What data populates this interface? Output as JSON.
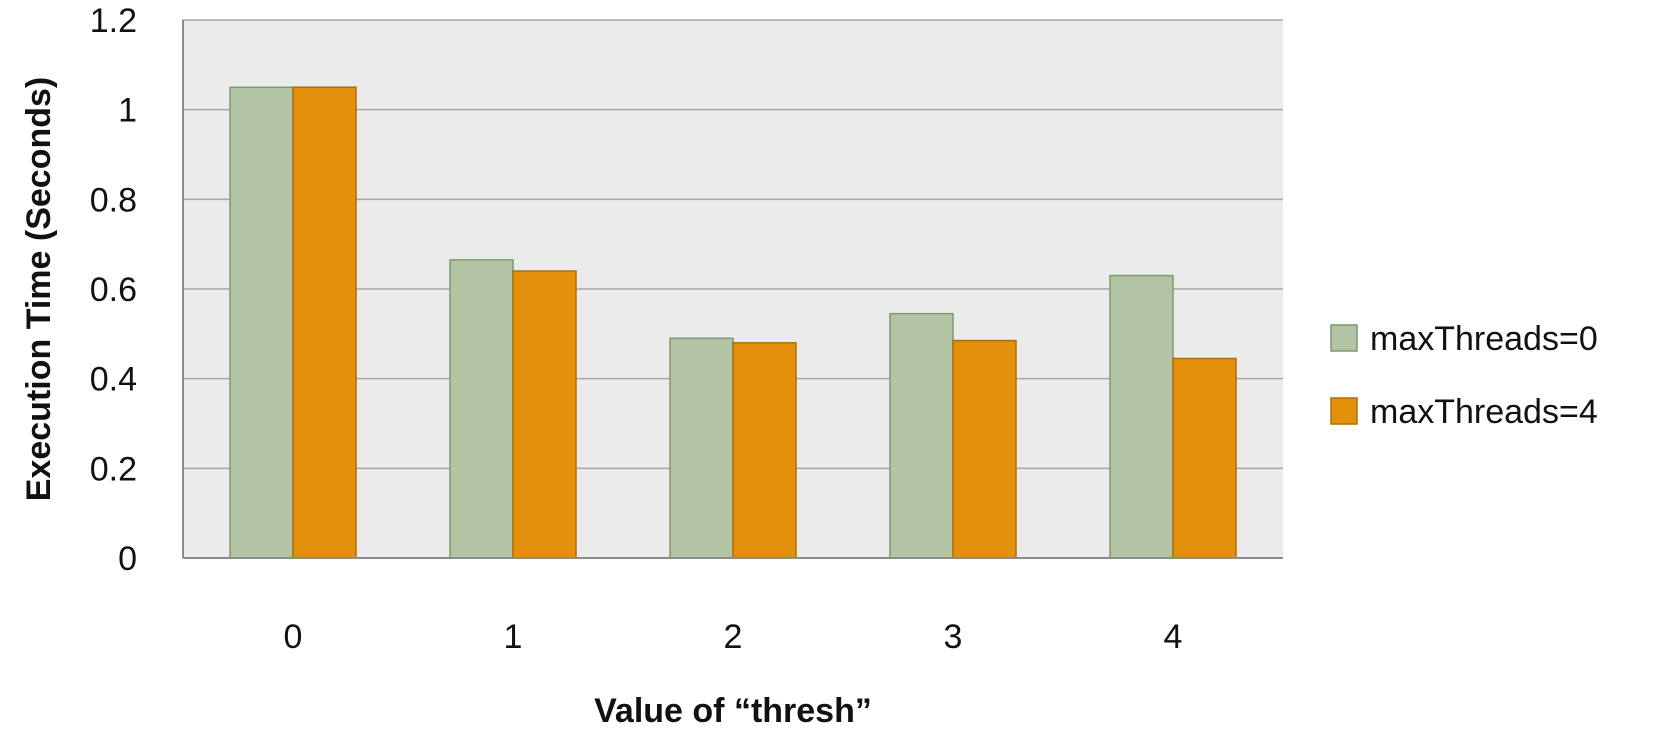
{
  "chart_data": {
    "type": "bar",
    "title": "",
    "xlabel": "Value of “thresh”",
    "ylabel": "Execution Time (Seconds)",
    "categories": [
      "0",
      "1",
      "2",
      "3",
      "4"
    ],
    "series": [
      {
        "name": "maxThreads=0",
        "color": "#b3c4a4",
        "stroke": "#7f9a70",
        "values": [
          1.05,
          0.665,
          0.49,
          0.545,
          0.63
        ]
      },
      {
        "name": "maxThreads=4",
        "color": "#e3900c",
        "stroke": "#b06e08",
        "values": [
          1.05,
          0.64,
          0.48,
          0.485,
          0.445
        ]
      }
    ],
    "ylim": [
      0,
      1.2
    ],
    "yticks": [
      "0",
      "0.2",
      "0.4",
      "0.6",
      "0.8",
      "1",
      "1.2"
    ],
    "grid": true,
    "legend_position": "right",
    "plot_background": "#ebebeb"
  }
}
